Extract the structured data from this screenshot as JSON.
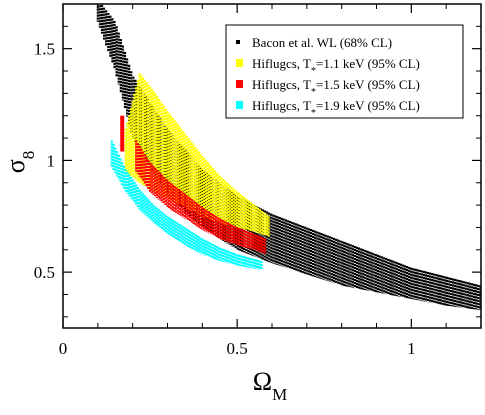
{
  "chart_data": {
    "type": "scatter",
    "xlabel": "Ω",
    "xlabel_sub": "M",
    "ylabel": "σ",
    "ylabel_sub": "8",
    "xlim": [
      0,
      1.2
    ],
    "ylim": [
      0.25,
      1.7
    ],
    "x_ticks": [
      {
        "value": 0,
        "label": "0"
      },
      {
        "value": 0.5,
        "label": "0.5"
      },
      {
        "value": 1,
        "label": "1"
      }
    ],
    "y_ticks": [
      {
        "value": 0.5,
        "label": "0.5"
      },
      {
        "value": 1,
        "label": "1"
      },
      {
        "value": 1.5,
        "label": "1.5"
      }
    ],
    "grid": false,
    "legend_position": "top-right",
    "series": [
      {
        "name_prefix": "Bacon et al. WL (68% CL)",
        "name_mid": "",
        "name_sub": "",
        "name_suffix": "",
        "color": "#000000",
        "x_range": [
          0.1,
          1.2
        ],
        "x_step": 0.006,
        "y_max_at_xmax": 0.44,
        "y_min_at_xmax": 0.33,
        "y_max": [
          [
            0.1,
            1.72
          ],
          [
            0.15,
            1.62
          ],
          [
            0.2,
            1.38
          ],
          [
            0.3,
            1.14
          ],
          [
            0.4,
            0.96
          ],
          [
            0.5,
            0.84
          ],
          [
            0.6,
            0.76
          ],
          [
            0.7,
            0.7
          ],
          [
            0.8,
            0.64
          ],
          [
            0.9,
            0.58
          ],
          [
            1.0,
            0.52
          ],
          [
            1.1,
            0.48
          ],
          [
            1.2,
            0.44
          ]
        ],
        "y_min": [
          [
            0.1,
            1.62
          ],
          [
            0.15,
            1.4
          ],
          [
            0.2,
            1.1
          ],
          [
            0.3,
            0.84
          ],
          [
            0.4,
            0.7
          ],
          [
            0.5,
            0.6
          ],
          [
            0.6,
            0.54
          ],
          [
            0.7,
            0.49
          ],
          [
            0.8,
            0.44
          ],
          [
            0.9,
            0.41
          ],
          [
            1.0,
            0.38
          ],
          [
            1.1,
            0.35
          ],
          [
            1.2,
            0.33
          ]
        ]
      },
      {
        "name_prefix": "Hiflugcs, T",
        "name_mid": "*",
        "name_sub": "",
        "name_suffix": "=1.1 keV (95% CL)",
        "color": "#ffff00",
        "x_range": [
          0.18,
          0.59
        ],
        "x_step": 0.005,
        "y_max": [
          [
            0.18,
            1.14
          ],
          [
            0.22,
            1.39
          ],
          [
            0.26,
            1.31
          ],
          [
            0.3,
            1.22
          ],
          [
            0.35,
            1.12
          ],
          [
            0.4,
            1.02
          ],
          [
            0.45,
            0.93
          ],
          [
            0.5,
            0.86
          ],
          [
            0.55,
            0.8
          ],
          [
            0.59,
            0.75
          ]
        ],
        "y_min": [
          [
            0.18,
            0.95
          ],
          [
            0.22,
            0.9
          ],
          [
            0.26,
            0.86
          ],
          [
            0.3,
            0.83
          ],
          [
            0.35,
            0.79
          ],
          [
            0.4,
            0.75
          ],
          [
            0.45,
            0.72
          ],
          [
            0.5,
            0.7
          ],
          [
            0.55,
            0.68
          ],
          [
            0.59,
            0.66
          ]
        ]
      },
      {
        "name_prefix": "Hiflugcs, T",
        "name_mid": "*",
        "name_sub": "",
        "name_suffix": "=1.5 keV (95% CL)",
        "color": "#ff0000",
        "x_range": [
          0.21,
          0.58
        ],
        "x_step": 0.005,
        "y_max": [
          [
            0.21,
            1.09
          ],
          [
            0.25,
            0.99
          ],
          [
            0.3,
            0.91
          ],
          [
            0.35,
            0.85
          ],
          [
            0.4,
            0.79
          ],
          [
            0.45,
            0.74
          ],
          [
            0.5,
            0.7
          ],
          [
            0.55,
            0.67
          ],
          [
            0.58,
            0.65
          ]
        ],
        "y_min": [
          [
            0.21,
            0.95
          ],
          [
            0.25,
            0.86
          ],
          [
            0.3,
            0.79
          ],
          [
            0.35,
            0.74
          ],
          [
            0.4,
            0.69
          ],
          [
            0.45,
            0.65
          ],
          [
            0.5,
            0.62
          ],
          [
            0.55,
            0.6
          ],
          [
            0.58,
            0.58
          ]
        ]
      },
      {
        "name_prefix": "Hiflugcs, T",
        "name_mid": "*",
        "name_sub": "",
        "name_suffix": "=1.9 keV (95% CL)",
        "color": "#00ffff",
        "x_range": [
          0.14,
          0.57
        ],
        "x_step": 0.005,
        "y_max": [
          [
            0.14,
            1.09
          ],
          [
            0.18,
            0.96
          ],
          [
            0.22,
            0.87
          ],
          [
            0.26,
            0.8
          ],
          [
            0.3,
            0.75
          ],
          [
            0.35,
            0.7
          ],
          [
            0.4,
            0.65
          ],
          [
            0.45,
            0.61
          ],
          [
            0.5,
            0.58
          ],
          [
            0.57,
            0.55
          ]
        ],
        "y_min": [
          [
            0.14,
            0.97
          ],
          [
            0.18,
            0.86
          ],
          [
            0.22,
            0.78
          ],
          [
            0.26,
            0.72
          ],
          [
            0.3,
            0.67
          ],
          [
            0.35,
            0.62
          ],
          [
            0.4,
            0.58
          ],
          [
            0.45,
            0.55
          ],
          [
            0.5,
            0.53
          ],
          [
            0.57,
            0.51
          ]
        ]
      }
    ],
    "extra_marks": [
      {
        "name": "red-vertical-streak",
        "color": "#ff0000",
        "x": 0.17,
        "y_from": 1.04,
        "y_to": 1.2
      }
    ]
  }
}
